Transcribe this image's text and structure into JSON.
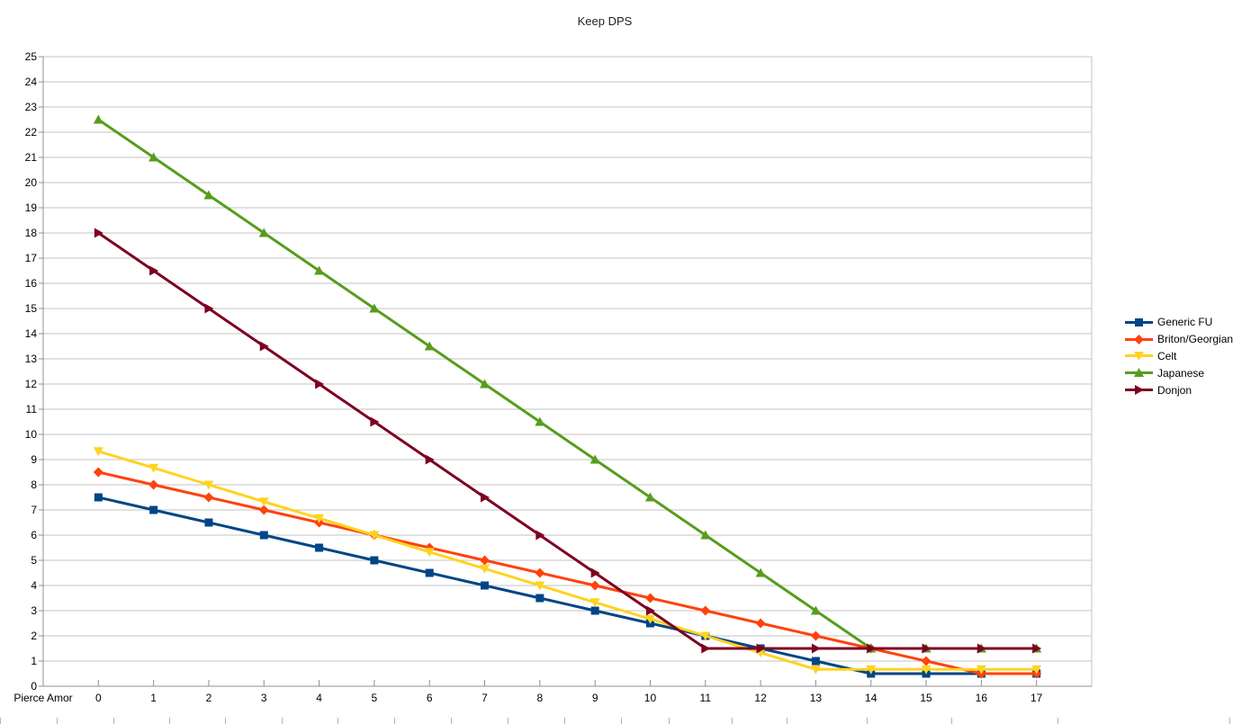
{
  "chart_data": {
    "type": "line",
    "title": "Keep DPS",
    "x_axis_label": "Pierce Amor",
    "categories": [
      "0",
      "1",
      "2",
      "3",
      "4",
      "5",
      "6",
      "7",
      "8",
      "9",
      "10",
      "11",
      "12",
      "13",
      "14",
      "15",
      "16",
      "17"
    ],
    "ylim": [
      0,
      25
    ],
    "ytick_step": 1,
    "grid": "horizontal-major",
    "legend_position": "right",
    "series": [
      {
        "name": "Generic FU",
        "color": "#004586",
        "marker": "square",
        "values": [
          7.5,
          7,
          6.5,
          6,
          5.5,
          5,
          4.5,
          4,
          3.5,
          3,
          2.5,
          2,
          1.5,
          1,
          0.5,
          0.5,
          0.5,
          0.5
        ]
      },
      {
        "name": "Briton/Georgian",
        "color": "#FF420E",
        "marker": "diamond",
        "values": [
          8.5,
          8,
          7.5,
          7,
          6.5,
          6,
          5.5,
          5,
          4.5,
          4,
          3.5,
          3,
          2.5,
          2,
          1.5,
          1,
          0.5,
          0.5
        ]
      },
      {
        "name": "Celt",
        "color": "#FFD320",
        "marker": "triangle-down",
        "values": [
          9.33,
          8.67,
          8,
          7.33,
          6.67,
          6,
          5.33,
          4.67,
          4,
          3.33,
          2.67,
          2,
          1.33,
          0.67,
          0.67,
          0.67,
          0.67,
          0.67
        ]
      },
      {
        "name": "Japanese",
        "color": "#579D1C",
        "marker": "triangle-up",
        "values": [
          22.5,
          21,
          19.5,
          18,
          16.5,
          15,
          13.5,
          12,
          10.5,
          9,
          7.5,
          6,
          4.5,
          3,
          1.5,
          1.5,
          1.5,
          1.5
        ]
      },
      {
        "name": "Donjon",
        "color": "#7E0021",
        "marker": "triangle-right",
        "values": [
          18,
          16.5,
          15,
          13.5,
          12,
          10.5,
          9,
          7.5,
          6,
          4.5,
          3,
          1.5,
          1.5,
          1.5,
          1.5,
          1.5,
          1.5,
          1.5
        ]
      }
    ]
  },
  "colors": {
    "axis": "#909090",
    "grid": "#c3c3c3",
    "tick": "#909090",
    "bottom_tick": "#b3b3b3",
    "text": "#000000",
    "background": "#ffffff"
  }
}
